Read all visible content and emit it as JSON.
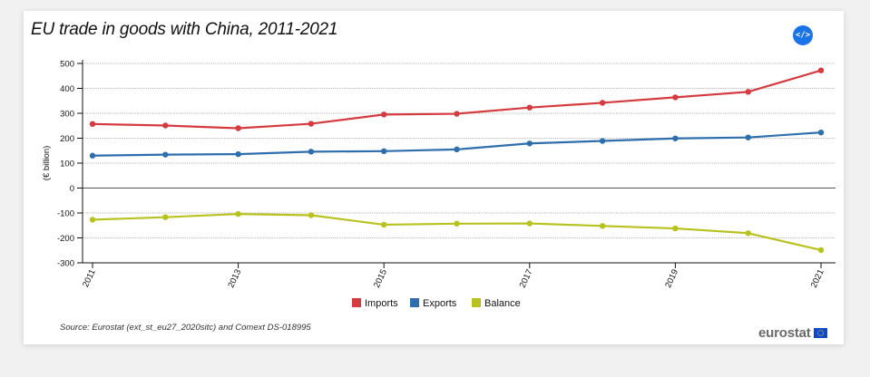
{
  "header": {
    "embed_label": "</>"
  },
  "footer": {
    "source": "Source: Eurostat (ext_st_eu27_2020sitc) and Comext DS-018995",
    "brand": "eurostat"
  },
  "colors": {
    "imports": "#d53a3f",
    "exports": "#2e6ead",
    "balance": "#b8c21e"
  },
  "chart_data": {
    "type": "line",
    "title": "EU trade in goods with China, 2011-2021",
    "ylabel": "(€ billion)",
    "xlabel": "",
    "x": [
      2011,
      2012,
      2013,
      2014,
      2015,
      2016,
      2017,
      2018,
      2019,
      2020,
      2021
    ],
    "x_tick_labels": [
      "2011",
      "2013",
      "2015",
      "2017",
      "2019",
      "2021"
    ],
    "y_ticks": [
      -300,
      -200,
      -100,
      0,
      100,
      200,
      300,
      400,
      500
    ],
    "ylim": [
      -300,
      500
    ],
    "grid": true,
    "legend": "bottom",
    "series": [
      {
        "name": "Imports",
        "color": "#d53a3f",
        "values": [
          257,
          251,
          240,
          258,
          295,
          298,
          323,
          342,
          364,
          386,
          472
        ]
      },
      {
        "name": "Exports",
        "color": "#2e6ead",
        "values": [
          130,
          134,
          136,
          146,
          148,
          155,
          179,
          189,
          199,
          203,
          223
        ]
      },
      {
        "name": "Balance",
        "color": "#b8c21e",
        "values": [
          -127,
          -117,
          -104,
          -109,
          -147,
          -143,
          -142,
          -152,
          -162,
          -181,
          -249
        ]
      }
    ]
  }
}
